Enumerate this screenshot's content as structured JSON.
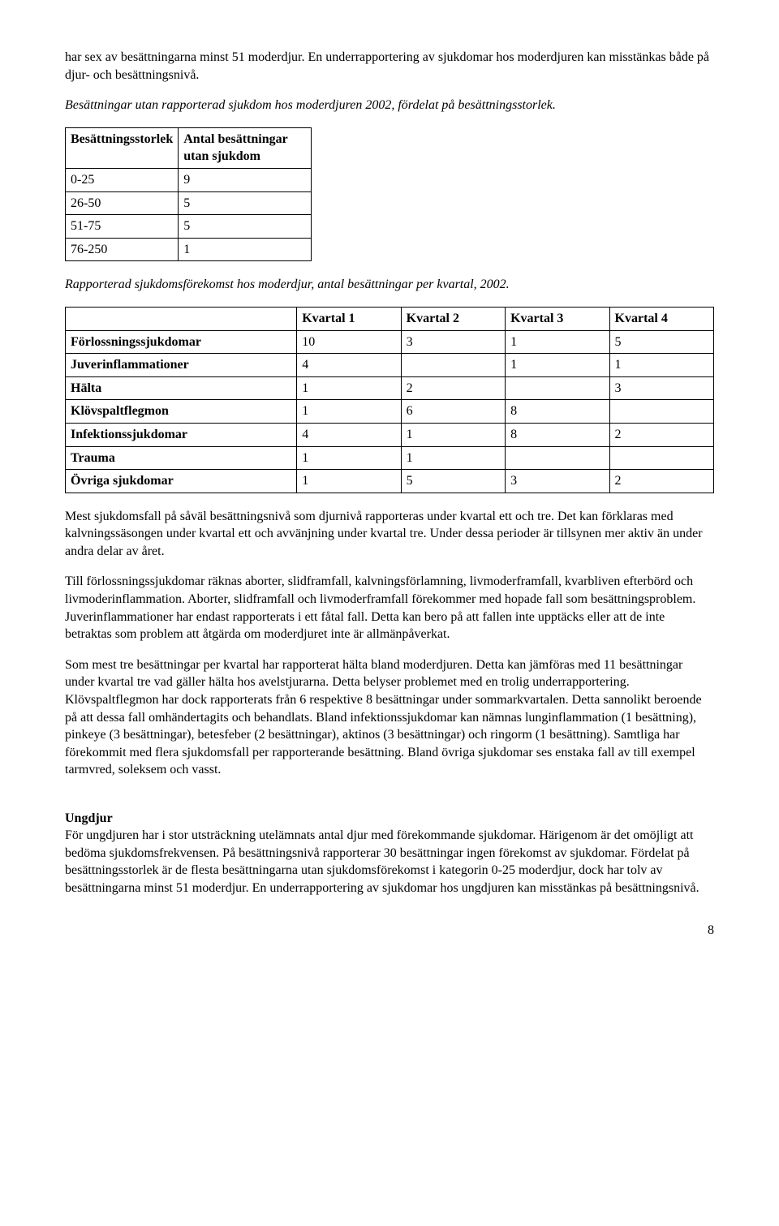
{
  "p_intro": "har sex av besättningarna minst 51 moderdjur. En underrapportering av sjukdomar hos moderdjuren kan misstänkas både på djur- och besättningsnivå.",
  "table1_caption": "Besättningar utan rapporterad sjukdom hos moderdjuren 2002, fördelat på besättningsstorlek.",
  "table1": {
    "col1_header": "Besättningsstorlek",
    "col2_header": "Antal besättningar utan sjukdom",
    "rows": [
      {
        "c1": "0-25",
        "c2": "9"
      },
      {
        "c1": "26-50",
        "c2": "5"
      },
      {
        "c1": "51-75",
        "c2": "5"
      },
      {
        "c1": "76-250",
        "c2": "1"
      }
    ]
  },
  "table2_caption": "Rapporterad sjukdomsförekomst hos moderdjur, antal besättningar per kvartal, 2002.",
  "table2": {
    "headers": [
      "",
      "Kvartal 1",
      "Kvartal 2",
      "Kvartal 3",
      "Kvartal 4"
    ],
    "rows": [
      {
        "label": "Förlossningssjukdomar",
        "c1": "10",
        "c2": "3",
        "c3": "1",
        "c4": "5"
      },
      {
        "label": "Juverinflammationer",
        "c1": "4",
        "c2": "",
        "c3": "1",
        "c4": "1"
      },
      {
        "label": "Hälta",
        "c1": "1",
        "c2": "2",
        "c3": "",
        "c4": "3"
      },
      {
        "label": "Klövspaltflegmon",
        "c1": "1",
        "c2": "6",
        "c3": "8",
        "c4": ""
      },
      {
        "label": "Infektionssjukdomar",
        "c1": "4",
        "c2": "1",
        "c3": "8",
        "c4": "2"
      },
      {
        "label": "Trauma",
        "c1": "1",
        "c2": "1",
        "c3": "",
        "c4": ""
      },
      {
        "label": "Övriga sjukdomar",
        "c1": "1",
        "c2": "5",
        "c3": "3",
        "c4": "2"
      }
    ]
  },
  "p_body1": "Mest sjukdomsfall på såväl besättningsnivå som djurnivå rapporteras under kvartal ett och tre. Det kan förklaras med kalvningssäsongen under kvartal ett och avvänjning under kvartal tre. Under dessa perioder är tillsynen mer aktiv än under andra delar av året.",
  "p_body2": "Till förlossningssjukdomar räknas aborter, slidframfall, kalvningsförlamning, livmoderframfall, kvarbliven efterbörd och livmoderinflammation. Aborter, slidframfall och livmoderframfall förekommer med hopade fall som besättningsproblem. Juverinflammationer har endast rapporterats i ett fåtal fall. Detta kan bero på att fallen inte upptäcks eller att de inte betraktas som problem att åtgärda om moderdjuret inte är allmänpåverkat.",
  "p_body3": "Som mest tre besättningar per kvartal har rapporterat hälta bland moderdjuren. Detta kan jämföras med 11 besättningar under kvartal tre vad gäller hälta hos avelstjurarna. Detta belyser problemet med en trolig underrapportering. Klövspaltflegmon har dock rapporterats från 6 respektive 8 besättningar under sommarkvartalen. Detta sannolikt beroende på att dessa fall omhändertagits och behandlats. Bland infektionssjukdomar kan nämnas lunginflammation (1 besättning), pinkeye (3 besättningar), betesfeber (2 besättningar), aktinos (3 besättningar) och ringorm (1 besättning). Samtliga har förekommit med flera sjukdomsfall per rapporterande besättning. Bland övriga sjukdomar ses enstaka fall av till exempel tarmvred, soleksem och vasst.",
  "ungdjur_heading": "Ungdjur",
  "p_ungdjur": "För ungdjuren har i stor utsträckning utelämnats antal djur med förekommande sjukdomar. Härigenom är det omöjligt att bedöma sjukdomsfrekvensen. På besättningsnivå rapporterar 30 besättningar ingen förekomst av sjukdomar. Fördelat på besättningsstorlek är de flesta besättningarna utan sjukdomsförekomst i kategorin 0-25 moderdjur, dock har tolv av besättningarna minst 51 moderdjur. En underrapportering av sjukdomar hos ungdjuren kan misstänkas på besättningsnivå.",
  "page_number": "8"
}
